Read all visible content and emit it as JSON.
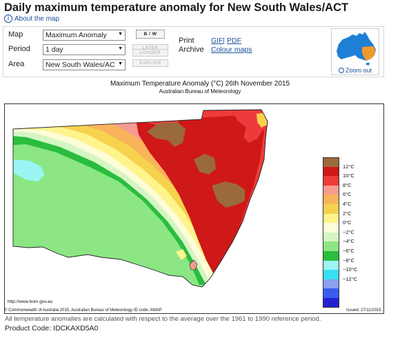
{
  "page": {
    "title": "Daily maximum temperature anomaly for New South Wales/ACT",
    "about_link": "About the map"
  },
  "controls": {
    "map_label": "Map",
    "map_value": "Maximum Anomaly",
    "period_label": "Period",
    "period_value": "1 day",
    "area_label": "Area",
    "area_value": "New South Wales/AC",
    "bw_button": "B / W",
    "nav_buttons": [
      "LATER",
      "LONGER",
      "EARLIER"
    ],
    "print_label": "Print",
    "archive_label": "Archive",
    "gif_link": "GIF",
    "link_sep": "|",
    "pdf_link": "PDF",
    "colour_maps_link": "Colour maps",
    "zoom_link": "Zoom out"
  },
  "map": {
    "title": "Maximum Temperature Anomaly (°C)  26th November 2015",
    "subtitle": "Australian Bureau of Meteorology",
    "url": "http://www.bom.gov.au"
  },
  "legend": {
    "colors": [
      "#9b6a3c",
      "#cf1818",
      "#ee3a3a",
      "#f69b91",
      "#f9b35b",
      "#f6d24e",
      "#fff48c",
      "#fffcd8",
      "#d5f6c4",
      "#8be683",
      "#2bbd3e",
      "#9af5f4",
      "#3ae0f2",
      "#8aa0f0",
      "#3a5cf0",
      "#2222d2"
    ],
    "labels": [
      "12°C",
      "10°C",
      "8°C",
      "6°C",
      "4°C",
      "2°C",
      "0°C",
      "−2°C",
      "−4°C",
      "−6°C",
      "−8°C",
      "−10°C",
      "−12°C"
    ]
  },
  "footer": {
    "copyright": "© Commonwealth of Australia 2015, Australian Bureau of Meteorology          ID code: AWAP",
    "issued": "Issued: 27/11/2015",
    "note": "All temperature anomalies are calculated with respect to the average over the 1961 to 1990 reference period.",
    "product_code": "Product Code: IDCKAXD5A0"
  }
}
